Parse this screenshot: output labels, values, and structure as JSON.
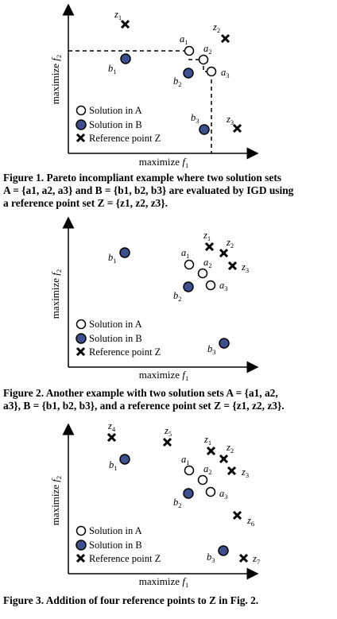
{
  "figures": [
    {
      "id": "fig1",
      "x_axis_label": "maximize",
      "x_axis_var": "f",
      "x_axis_sub": "1",
      "y_axis_label": "maximize",
      "y_axis_var": "f",
      "y_axis_sub": "2",
      "legend": [
        "Solution in A",
        "Solution in B",
        "Reference point Z"
      ],
      "caption_prefix": "Figure 1.",
      "caption_lines": [
        "Pareto incompliant example where two solution sets",
        "A = {a1, a2, a3} and B = {b1, b2, b3} are evaluated by IGD using",
        "a reference point set Z = {z1, z2, z3}."
      ]
    },
    {
      "id": "fig2",
      "x_axis_label": "maximize",
      "x_axis_var": "f",
      "x_axis_sub": "1",
      "y_axis_label": "maximize",
      "y_axis_var": "f",
      "y_axis_sub": "2",
      "legend": [
        "Solution in A",
        "Solution in B",
        "Reference point Z"
      ],
      "caption_prefix": "Figure 2.",
      "caption_lines": [
        "Another example with two solution sets A = {a1, a2,",
        "a3}, B = {b1, b2, b3}, and a reference point set Z = {z1, z2, z3}."
      ]
    },
    {
      "id": "fig3",
      "x_axis_label": "maximize",
      "x_axis_var": "f",
      "x_axis_sub": "1",
      "y_axis_label": "maximize",
      "y_axis_var": "f",
      "y_axis_sub": "2",
      "legend": [
        "Solution in A",
        "Solution in B",
        "Reference point Z"
      ],
      "caption_prefix": "Figure 3.",
      "caption_lines": [
        "Addition of four reference points to Z in Fig. 2."
      ]
    }
  ],
  "point_labels": {
    "a": "a",
    "b": "b",
    "z": "z"
  },
  "colors": {
    "solution_b_fill": "#3d4f8f",
    "solution_a_fill": "#ffffff",
    "stroke": "#000000"
  }
}
